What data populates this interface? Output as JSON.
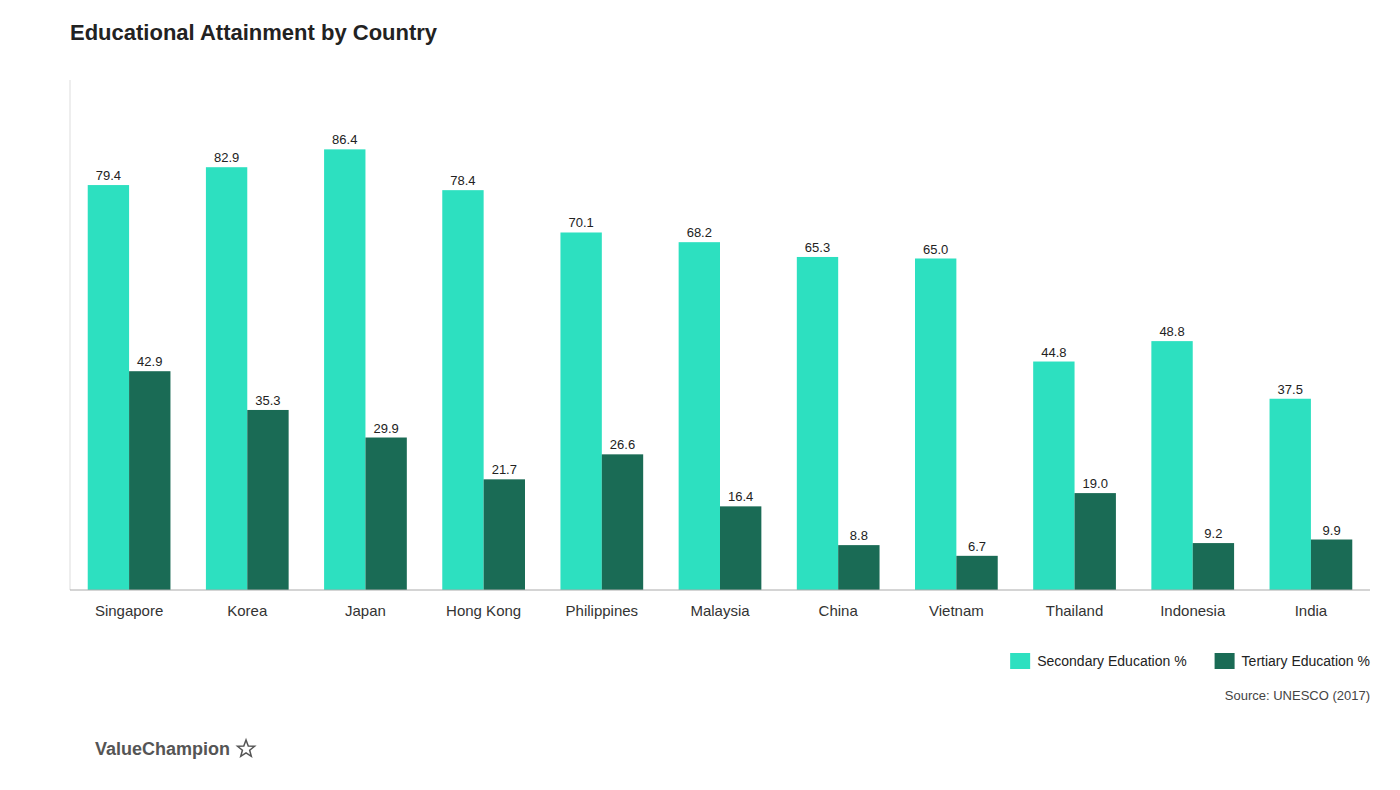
{
  "chart_data": {
    "type": "bar",
    "title": "Educational Attainment by Country",
    "categories": [
      "Singapore",
      "Korea",
      "Japan",
      "Hong Kong",
      "Philippines",
      "Malaysia",
      "China",
      "Vietnam",
      "Thailand",
      "Indonesia",
      "India"
    ],
    "series": [
      {
        "name": "Secondary Education %",
        "color": "#2de0c0",
        "values": [
          79.4,
          82.9,
          86.4,
          78.4,
          70.1,
          68.2,
          65.3,
          65.0,
          44.8,
          48.8,
          37.5
        ],
        "value_labels": [
          "79.4",
          "82.9",
          "86.4",
          "78.4",
          "70.1",
          "68.2",
          "65.3",
          "65.0",
          "44.8",
          "48.8",
          "37.5"
        ]
      },
      {
        "name": "Tertiary Education %",
        "color": "#1a6b55",
        "values": [
          42.9,
          35.3,
          29.9,
          21.7,
          26.6,
          16.4,
          8.8,
          6.7,
          19.0,
          9.2,
          9.9
        ],
        "value_labels": [
          "42.9",
          "35.3",
          "29.9",
          "21.7",
          "26.6",
          "16.4",
          "8.8",
          "6.7",
          "19.0",
          "9.2",
          "9.9"
        ]
      }
    ],
    "ylim": [
      0,
      100
    ],
    "data_labels": true,
    "tick_labels": "x",
    "grid": false,
    "legend": "bottom-right",
    "annotations": [
      "Source: UNESCO (2017)",
      "ValueChampion"
    ]
  }
}
